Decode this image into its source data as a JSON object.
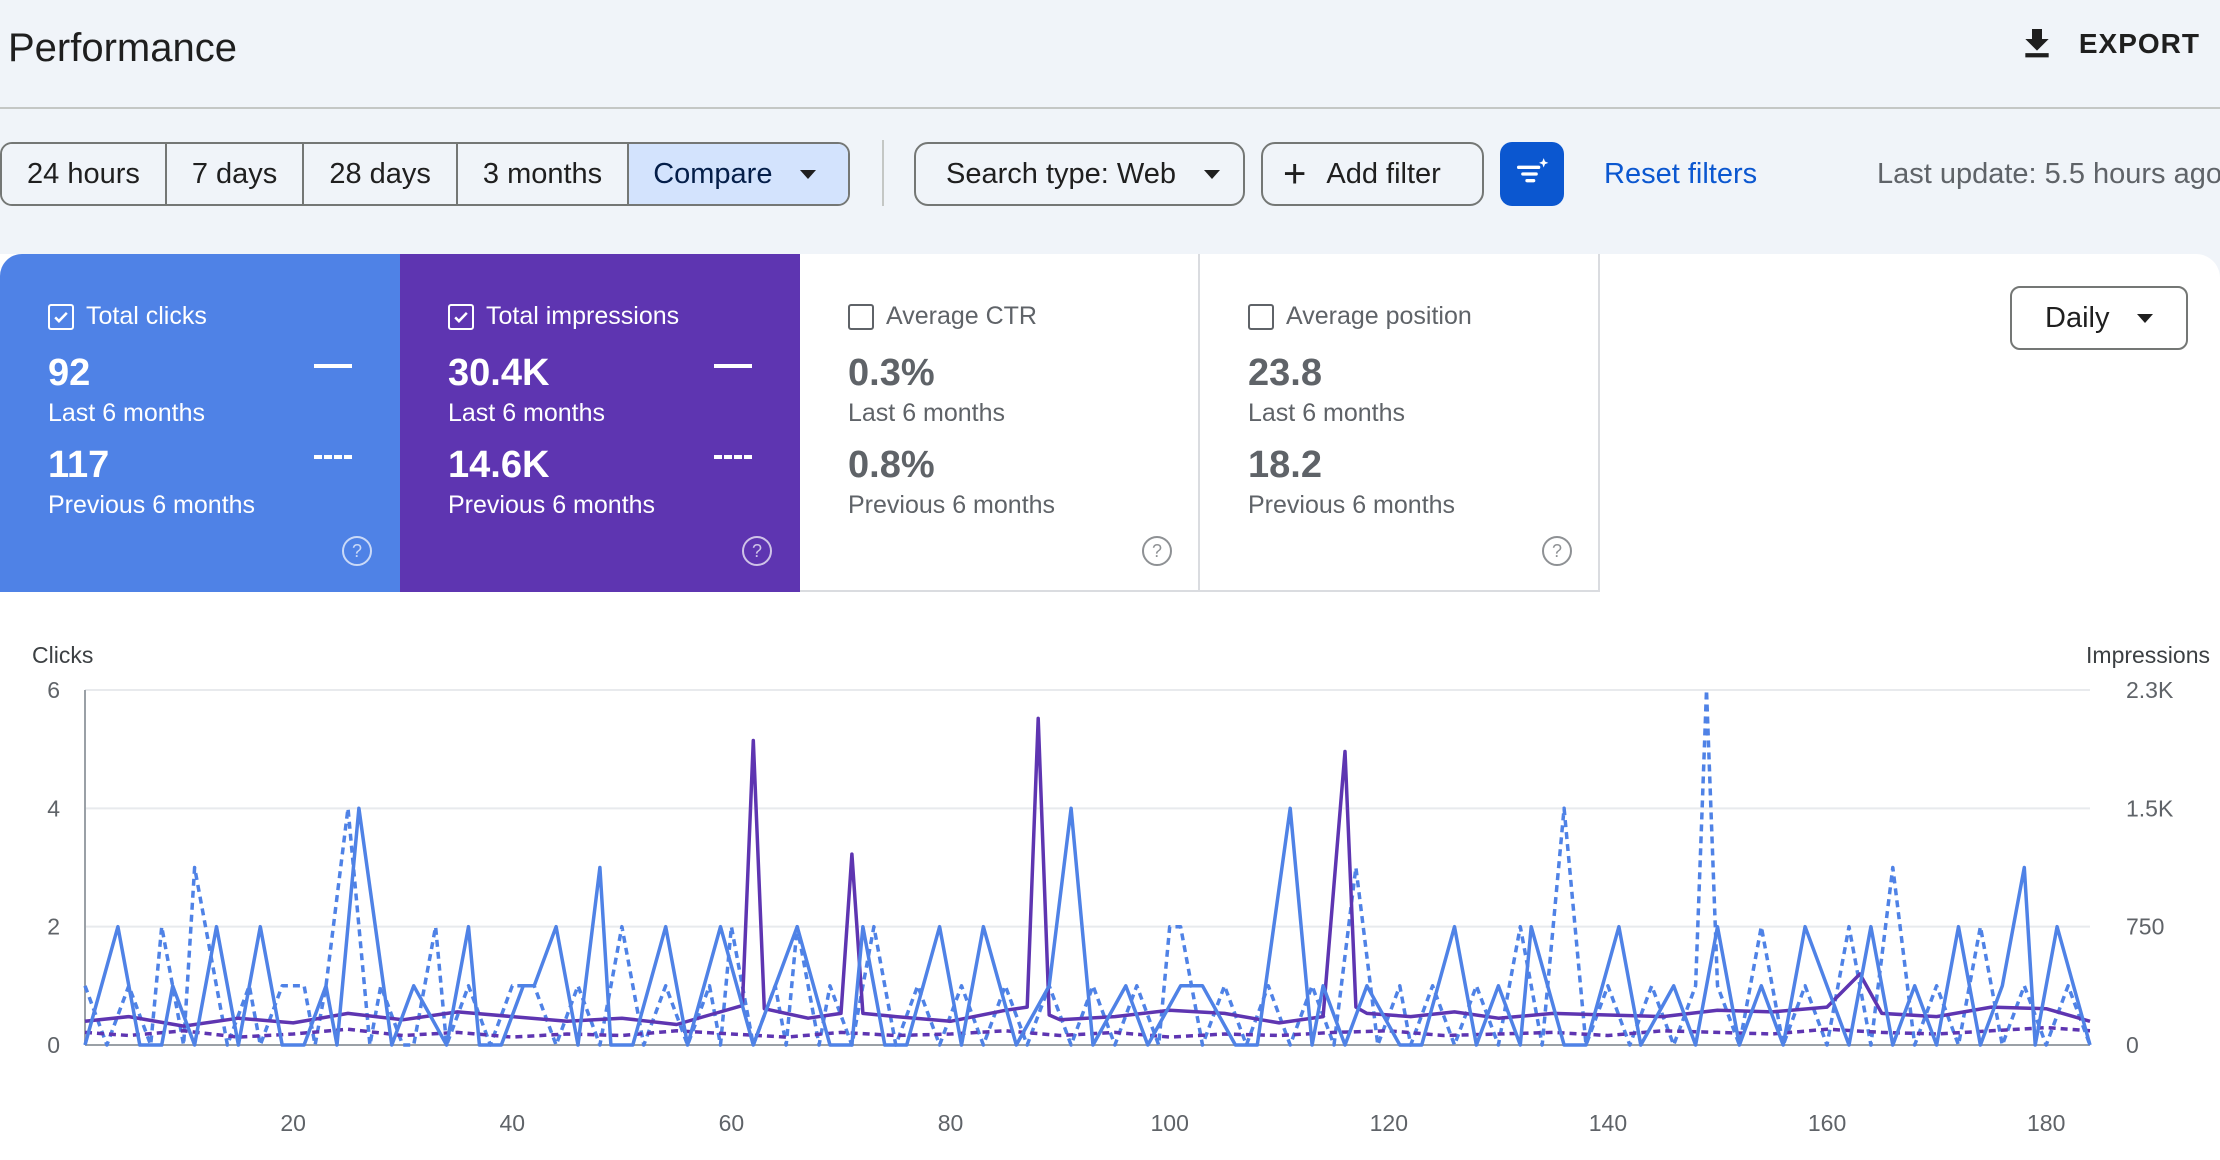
{
  "header": {
    "title": "Performance",
    "export_label": "EXPORT"
  },
  "filters": {
    "ranges": [
      "24 hours",
      "7 days",
      "28 days",
      "3 months",
      "Compare"
    ],
    "selected": "Compare",
    "search_type": "Search type: Web",
    "add_filter": "Add filter",
    "reset": "Reset filters",
    "last_update": "Last update: 5.5 hours ago"
  },
  "metrics": [
    {
      "label": "Total clicks",
      "checked": true,
      "value_current": "92",
      "period_current": "Last 6 months",
      "value_previous": "117",
      "period_previous": "Previous 6 months"
    },
    {
      "label": "Total impressions",
      "checked": true,
      "value_current": "30.4K",
      "period_current": "Last 6 months",
      "value_previous": "14.6K",
      "period_previous": "Previous 6 months"
    },
    {
      "label": "Average CTR",
      "checked": false,
      "value_current": "0.3%",
      "period_current": "Last 6 months",
      "value_previous": "0.8%",
      "period_previous": "Previous 6 months"
    },
    {
      "label": "Average position",
      "checked": false,
      "value_current": "23.8",
      "period_current": "Last 6 months",
      "value_previous": "18.2",
      "period_previous": "Previous 6 months"
    }
  ],
  "granularity": "Daily",
  "colors": {
    "clicks": "#4f82e6",
    "impressions": "#5e35b1",
    "accent": "#0b57d0"
  },
  "icons": {
    "export": "download-icon",
    "add": "plus-icon",
    "filter": "filter-sparkle-icon",
    "help": "help-icon",
    "checkbox": "checkbox-icon"
  },
  "chart_data": {
    "type": "line",
    "left_axis": {
      "label": "Clicks",
      "ticks": [
        "0",
        "2",
        "4",
        "6"
      ],
      "ylim": [
        0,
        6
      ]
    },
    "right_axis": {
      "label": "Impressions",
      "ticks": [
        "0",
        "750",
        "1.5K",
        "2.3K"
      ],
      "ylim": [
        0,
        2250
      ]
    },
    "x_ticks": [
      "20",
      "40",
      "60",
      "80",
      "100",
      "120",
      "140",
      "160",
      "180"
    ],
    "xlim": [
      1,
      184
    ],
    "grid": true,
    "series": [
      {
        "axis": "left",
        "style": "solid",
        "color": "#4f82e6",
        "x": [
          1,
          4,
          6,
          8,
          9,
          11,
          13,
          15,
          17,
          19,
          21,
          23,
          24,
          26,
          29,
          31,
          34,
          36,
          37,
          39,
          41,
          42,
          44,
          46,
          48,
          49,
          51,
          54,
          56,
          59,
          62,
          66,
          69,
          71,
          72,
          74,
          76,
          79,
          81,
          83,
          86,
          89,
          91,
          93,
          96,
          98,
          101,
          103,
          106,
          108,
          111,
          113,
          114,
          116,
          118,
          121,
          123,
          126,
          128,
          130,
          132,
          133,
          136,
          138,
          141,
          143,
          146,
          148,
          150,
          152,
          154,
          156,
          158,
          160,
          162,
          164,
          166,
          168,
          170,
          172,
          174,
          176,
          178,
          179,
          181,
          184
        ],
        "y": [
          0,
          2,
          0,
          0,
          1,
          0,
          2,
          0,
          2,
          0,
          0,
          1,
          0,
          4,
          0,
          1,
          0,
          2,
          0,
          0,
          1,
          1,
          2,
          0,
          3,
          0,
          0,
          2,
          0,
          2,
          0,
          2,
          0,
          0,
          2,
          0,
          0,
          2,
          0,
          2,
          0,
          1,
          4,
          0,
          1,
          0,
          1,
          1,
          0,
          0,
          4,
          0,
          1,
          0,
          1,
          0,
          0,
          2,
          0,
          1,
          0,
          2,
          0,
          0,
          2,
          0,
          1,
          0,
          2,
          0,
          1,
          0,
          2,
          1,
          0,
          2,
          0,
          1,
          0,
          2,
          0,
          1,
          3,
          0,
          2,
          0
        ]
      },
      {
        "axis": "left",
        "style": "dashed",
        "color": "#4f82e6",
        "x": [
          1,
          3,
          5,
          7,
          8,
          10,
          11,
          14,
          16,
          17,
          19,
          21,
          22,
          23,
          25,
          27,
          28,
          30,
          31,
          33,
          34,
          36,
          38,
          40,
          42,
          44,
          46,
          48,
          50,
          52,
          54,
          56,
          58,
          59,
          60,
          62,
          64,
          65,
          66,
          68,
          69,
          71,
          73,
          75,
          77,
          79,
          81,
          83,
          85,
          87,
          89,
          91,
          93,
          95,
          97,
          99,
          100,
          101,
          103,
          105,
          107,
          109,
          111,
          113,
          115,
          117,
          119,
          121,
          122,
          124,
          126,
          128,
          130,
          132,
          134,
          136,
          138,
          140,
          142,
          144,
          146,
          148,
          149,
          150,
          152,
          154,
          156,
          158,
          160,
          162,
          164,
          166,
          168,
          170,
          172,
          174,
          176,
          178,
          180,
          182,
          184
        ],
        "y": [
          1,
          0,
          1,
          0,
          2,
          0,
          3,
          0,
          1,
          0,
          1,
          1,
          0,
          1,
          4,
          0,
          1,
          0,
          0,
          2,
          0,
          1,
          0,
          1,
          1,
          0,
          1,
          0,
          2,
          0,
          1,
          0,
          1,
          0,
          2,
          0,
          1,
          0,
          2,
          0,
          1,
          0,
          2,
          0,
          1,
          0,
          1,
          0,
          1,
          0,
          1,
          0,
          1,
          0,
          1,
          0,
          2,
          2,
          0,
          1,
          0,
          1,
          0,
          1,
          0,
          3,
          0,
          1,
          0,
          1,
          0,
          1,
          0,
          2,
          0,
          4,
          0,
          1,
          0,
          1,
          0,
          1,
          6,
          1,
          0,
          2,
          0,
          1,
          0,
          2,
          0,
          3,
          0,
          1,
          0,
          2,
          0,
          1,
          0,
          1,
          0
        ]
      },
      {
        "axis": "right",
        "style": "solid",
        "color": "#5e35b1",
        "x": [
          1,
          5,
          10,
          15,
          20,
          25,
          30,
          35,
          40,
          45,
          50,
          55,
          58,
          61,
          62,
          63,
          67,
          70,
          71,
          72,
          75,
          80,
          85,
          87,
          88,
          89,
          90,
          95,
          100,
          105,
          110,
          114,
          116,
          117,
          118,
          122,
          126,
          130,
          135,
          140,
          145,
          150,
          155,
          160,
          163,
          165,
          170,
          175,
          180,
          184
        ],
        "y": [
          150,
          180,
          120,
          170,
          140,
          200,
          160,
          210,
          180,
          150,
          170,
          130,
          190,
          250,
          1930,
          230,
          170,
          200,
          1210,
          200,
          180,
          150,
          220,
          240,
          2070,
          190,
          160,
          180,
          220,
          200,
          140,
          180,
          1860,
          240,
          200,
          180,
          210,
          170,
          200,
          190,
          180,
          220,
          210,
          240,
          450,
          200,
          180,
          240,
          230,
          150
        ]
      },
      {
        "axis": "right",
        "style": "dashed",
        "color": "#5e35b1",
        "x": [
          1,
          5,
          10,
          15,
          20,
          25,
          30,
          35,
          40,
          45,
          50,
          55,
          60,
          65,
          70,
          75,
          80,
          85,
          90,
          95,
          100,
          105,
          110,
          115,
          120,
          125,
          130,
          135,
          140,
          145,
          150,
          155,
          160,
          165,
          170,
          175,
          180,
          184
        ],
        "y": [
          80,
          60,
          90,
          50,
          70,
          100,
          60,
          80,
          50,
          70,
          60,
          90,
          70,
          50,
          80,
          60,
          70,
          90,
          60,
          80,
          50,
          70,
          60,
          80,
          90,
          60,
          70,
          80,
          60,
          90,
          80,
          70,
          100,
          80,
          70,
          90,
          110,
          90
        ]
      }
    ]
  }
}
